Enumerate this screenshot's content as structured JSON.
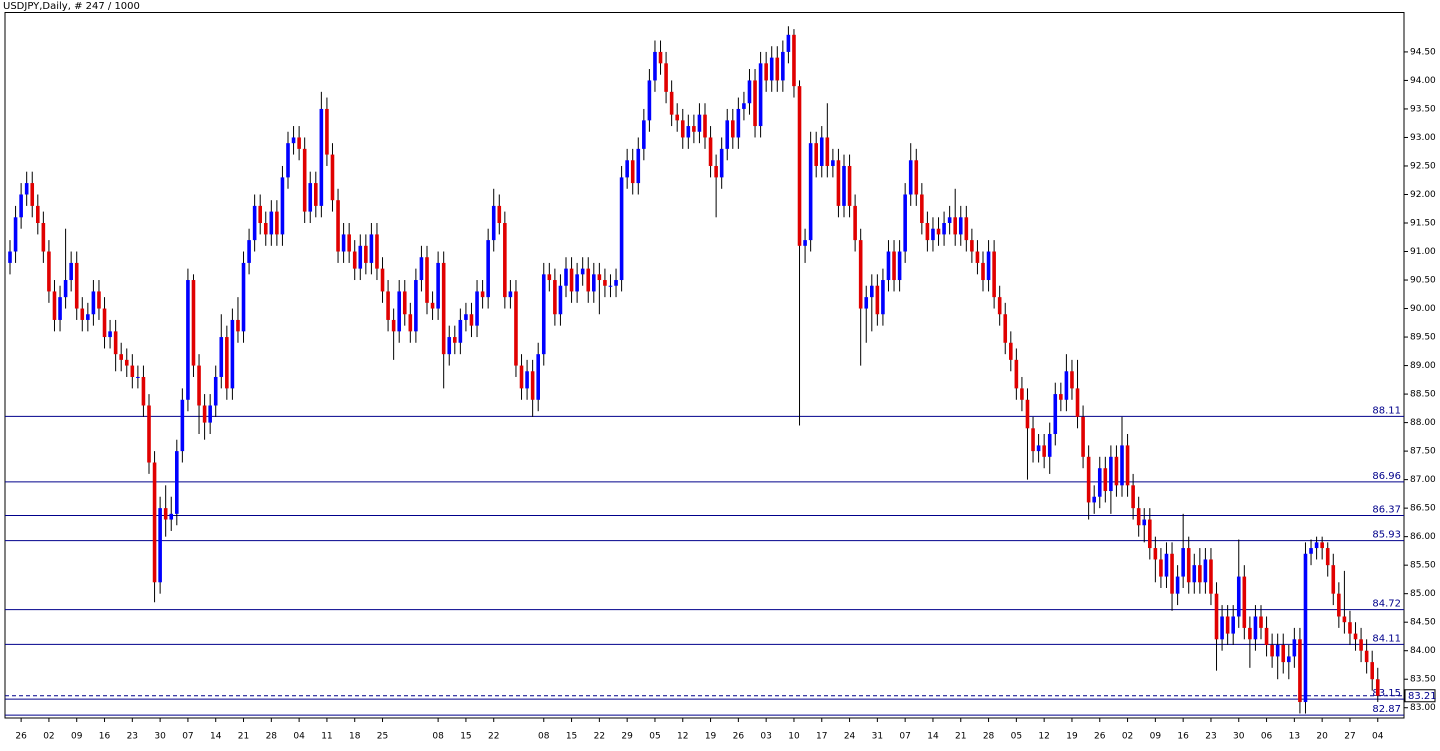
{
  "chart_data": {
    "type": "candlestick",
    "title": "USDJPY,Daily, # 247 / 1000",
    "up_color": "#0000ff",
    "down_color": "#e00000",
    "wick_color": "#000000",
    "level_color": "#00008b",
    "ylim": [
      82.82,
      95.2
    ],
    "yticks": [
      {
        "value": 83.0,
        "label": "83.00"
      },
      {
        "value": 83.5,
        "label": "83.50"
      },
      {
        "value": 84.0,
        "label": "84.00"
      },
      {
        "value": 84.5,
        "label": "84.50"
      },
      {
        "value": 85.0,
        "label": "85.00"
      },
      {
        "value": 85.5,
        "label": "85.50"
      },
      {
        "value": 86.0,
        "label": "86.00"
      },
      {
        "value": 86.5,
        "label": "86.50"
      },
      {
        "value": 87.0,
        "label": "87.00"
      },
      {
        "value": 87.5,
        "label": "87.50"
      },
      {
        "value": 88.0,
        "label": "88.00"
      },
      {
        "value": 88.5,
        "label": "88.50"
      },
      {
        "value": 89.0,
        "label": "89.00"
      },
      {
        "value": 89.5,
        "label": "89.50"
      },
      {
        "value": 90.0,
        "label": "90.00"
      },
      {
        "value": 90.5,
        "label": "90.50"
      },
      {
        "value": 91.0,
        "label": "91.00"
      },
      {
        "value": 91.5,
        "label": "91.50"
      },
      {
        "value": 92.0,
        "label": "92.00"
      },
      {
        "value": 92.5,
        "label": "92.50"
      },
      {
        "value": 93.0,
        "label": "93.00"
      },
      {
        "value": 93.5,
        "label": "93.50"
      },
      {
        "value": 94.0,
        "label": "94.00"
      },
      {
        "value": 94.5,
        "label": "94.50"
      }
    ],
    "levels": [
      88.11,
      86.96,
      86.37,
      85.93,
      84.72,
      84.11,
      83.15,
      82.87
    ],
    "bid": 83.21,
    "categories": [
      null,
      null,
      "26",
      null,
      null,
      null,
      null,
      "02",
      null,
      null,
      null,
      null,
      "09",
      null,
      null,
      null,
      null,
      "16",
      null,
      null,
      null,
      null,
      "23",
      null,
      null,
      null,
      null,
      "30",
      null,
      null,
      null,
      null,
      "07",
      null,
      null,
      null,
      null,
      "14",
      null,
      null,
      null,
      null,
      "21",
      null,
      null,
      null,
      null,
      "28",
      null,
      null,
      null,
      null,
      "04",
      null,
      null,
      null,
      null,
      "11",
      null,
      null,
      null,
      null,
      "18",
      null,
      null,
      null,
      null,
      "25",
      null,
      null,
      null,
      null,
      null,
      null,
      null,
      null,
      null,
      "08",
      null,
      null,
      null,
      null,
      "15",
      null,
      null,
      null,
      null,
      "22",
      null,
      null,
      null,
      null,
      null,
      null,
      null,
      null,
      "08",
      null,
      null,
      null,
      null,
      "15",
      null,
      null,
      null,
      null,
      "22",
      null,
      null,
      null,
      null,
      "29",
      null,
      null,
      null,
      null,
      "05",
      null,
      null,
      null,
      null,
      "12",
      null,
      null,
      null,
      null,
      "19",
      null,
      null,
      null,
      null,
      "26",
      null,
      null,
      null,
      null,
      "03",
      null,
      null,
      null,
      null,
      "10",
      null,
      null,
      null,
      null,
      "17",
      null,
      null,
      null,
      null,
      "24",
      null,
      null,
      null,
      null,
      "31",
      null,
      null,
      null,
      null,
      "07",
      null,
      null,
      null,
      null,
      "14",
      null,
      null,
      null,
      null,
      "21",
      null,
      null,
      null,
      null,
      "28",
      null,
      null,
      null,
      null,
      "05",
      null,
      null,
      null,
      null,
      "12",
      null,
      null,
      null,
      null,
      "19",
      null,
      null,
      null,
      null,
      "26",
      null,
      null,
      null,
      null,
      "02",
      null,
      null,
      null,
      null,
      "09",
      null,
      null,
      null,
      null,
      "16",
      null,
      null,
      null,
      null,
      "23",
      null,
      null,
      null,
      null,
      "30",
      null,
      null,
      null,
      null,
      "06",
      null,
      null,
      null,
      null,
      "13",
      null,
      null,
      null,
      null,
      "20",
      null,
      null,
      null,
      null,
      "27",
      null,
      null,
      null,
      null,
      "04"
    ],
    "open": [
      90.8,
      91.0,
      91.6,
      92.0,
      92.2,
      91.8,
      91.5,
      91.0,
      90.3,
      89.8,
      90.2,
      90.5,
      90.8,
      90.0,
      89.8,
      89.9,
      90.3,
      90.0,
      89.5,
      89.6,
      89.2,
      89.1,
      89.0,
      88.8,
      88.8,
      88.3,
      87.3,
      85.2,
      86.5,
      86.3,
      86.4,
      87.5,
      88.4,
      90.5,
      89.0,
      88.3,
      88.0,
      88.3,
      88.8,
      89.5,
      88.6,
      89.8,
      89.6,
      90.8,
      91.2,
      91.8,
      91.5,
      91.3,
      91.7,
      91.3,
      92.3,
      92.9,
      93.0,
      92.8,
      91.7,
      92.2,
      91.8,
      93.5,
      92.7,
      91.9,
      91.0,
      91.3,
      91.0,
      90.7,
      91.1,
      90.8,
      91.3,
      90.7,
      90.3,
      89.8,
      89.6,
      90.3,
      89.9,
      89.6,
      90.5,
      90.9,
      90.1,
      90.0,
      90.8,
      89.2,
      89.5,
      89.4,
      89.8,
      89.9,
      89.7,
      90.3,
      90.2,
      91.2,
      91.8,
      91.5,
      90.2,
      90.3,
      89.0,
      88.6,
      88.9,
      88.4,
      89.2,
      90.6,
      90.5,
      89.9,
      90.4,
      90.7,
      90.3,
      90.6,
      90.7,
      90.3,
      90.6,
      90.5,
      90.4,
      90.4,
      90.5,
      92.3,
      92.6,
      92.2,
      92.8,
      93.3,
      94.0,
      94.5,
      94.3,
      93.8,
      93.4,
      93.3,
      93.0,
      93.2,
      93.1,
      93.4,
      93.0,
      92.5,
      92.3,
      92.8,
      93.3,
      93.0,
      93.5,
      93.6,
      94.0,
      93.2,
      94.3,
      94.0,
      94.4,
      94.0,
      94.5,
      94.8,
      93.9,
      91.1,
      91.2,
      92.9,
      92.5,
      93.0,
      92.5,
      92.6,
      91.8,
      92.5,
      91.8,
      91.2,
      90.0,
      90.2,
      90.4,
      89.9,
      90.5,
      91.0,
      90.5,
      91.0,
      92.0,
      92.6,
      92.0,
      91.5,
      91.2,
      91.4,
      91.3,
      91.5,
      91.6,
      91.3,
      91.6,
      91.2,
      91.0,
      90.8,
      90.5,
      91.0,
      90.2,
      89.9,
      89.4,
      89.1,
      88.6,
      88.4,
      87.9,
      87.5,
      87.6,
      87.4,
      87.8,
      88.5,
      88.4,
      88.9,
      88.6,
      88.1,
      87.4,
      86.6,
      86.7,
      87.2,
      86.8,
      87.4,
      86.9,
      87.6,
      86.9,
      86.5,
      86.2,
      86.3,
      85.8,
      85.6,
      85.3,
      85.7,
      85.0,
      85.3,
      85.8,
      85.2,
      85.5,
      85.2,
      85.6,
      85.0,
      84.2,
      84.6,
      84.3,
      84.6,
      85.3,
      84.4,
      84.2,
      84.6,
      84.4,
      84.1,
      83.9,
      84.1,
      83.8,
      83.9,
      84.2,
      83.1,
      85.7,
      85.8,
      85.9,
      85.8,
      85.5,
      85.0,
      84.6,
      84.5,
      84.3,
      84.2,
      84.0,
      83.8,
      83.5
    ],
    "high": [
      91.2,
      91.8,
      92.2,
      92.4,
      92.4,
      92.0,
      91.7,
      91.2,
      90.5,
      90.4,
      91.4,
      91.0,
      91.0,
      90.2,
      90.1,
      90.5,
      90.5,
      90.2,
      89.8,
      89.8,
      89.4,
      89.3,
      89.2,
      89.0,
      89.0,
      88.5,
      87.5,
      86.7,
      86.9,
      86.7,
      87.7,
      88.6,
      90.7,
      90.6,
      89.2,
      88.5,
      88.5,
      89.0,
      89.9,
      89.7,
      90.0,
      90.2,
      91.0,
      91.4,
      92.0,
      92.0,
      91.7,
      91.9,
      91.9,
      92.5,
      93.1,
      93.2,
      93.2,
      93.0,
      92.4,
      92.4,
      93.8,
      93.7,
      92.9,
      92.1,
      91.5,
      91.5,
      91.2,
      91.3,
      91.3,
      91.5,
      91.5,
      90.9,
      90.5,
      90.0,
      90.5,
      90.5,
      90.1,
      90.7,
      91.1,
      91.1,
      90.3,
      91.0,
      91.0,
      89.7,
      89.7,
      90.0,
      90.1,
      90.1,
      90.5,
      90.5,
      91.4,
      92.1,
      92.0,
      91.7,
      90.5,
      90.5,
      89.2,
      89.1,
      89.1,
      89.4,
      90.8,
      90.8,
      90.7,
      90.6,
      90.9,
      90.9,
      90.8,
      90.9,
      90.9,
      90.8,
      90.8,
      90.7,
      90.6,
      90.7,
      92.5,
      92.8,
      92.8,
      93.0,
      93.5,
      94.2,
      94.7,
      94.7,
      94.5,
      94.0,
      93.6,
      93.5,
      93.4,
      93.4,
      93.6,
      93.6,
      93.2,
      92.7,
      93.0,
      93.5,
      93.5,
      93.7,
      93.8,
      94.2,
      94.2,
      94.5,
      94.5,
      94.6,
      94.6,
      94.7,
      94.95,
      94.9,
      94.0,
      91.4,
      93.1,
      93.1,
      93.2,
      93.6,
      92.8,
      92.8,
      92.7,
      92.7,
      92.0,
      91.4,
      90.4,
      90.6,
      90.6,
      90.7,
      91.2,
      91.2,
      91.2,
      92.2,
      92.9,
      92.8,
      92.2,
      91.7,
      91.6,
      91.6,
      91.7,
      91.8,
      92.1,
      91.8,
      91.8,
      91.4,
      91.2,
      91.0,
      91.2,
      91.2,
      90.4,
      90.1,
      89.6,
      89.3,
      88.8,
      88.6,
      88.1,
      87.8,
      87.8,
      88.0,
      88.7,
      88.7,
      89.2,
      89.1,
      89.1,
      88.3,
      87.6,
      86.9,
      87.4,
      87.4,
      87.6,
      87.6,
      88.1,
      87.8,
      87.1,
      86.7,
      86.5,
      86.5,
      86.0,
      85.8,
      85.9,
      85.9,
      85.5,
      86.4,
      86.0,
      85.7,
      85.8,
      85.8,
      85.8,
      85.2,
      84.8,
      84.8,
      84.8,
      85.95,
      85.5,
      84.6,
      84.8,
      84.8,
      84.6,
      84.3,
      84.3,
      84.3,
      84.1,
      84.4,
      84.4,
      85.9,
      85.95,
      86.0,
      86.0,
      85.9,
      85.7,
      85.2,
      85.4,
      84.7,
      84.5,
      84.4,
      84.2,
      84.0,
      83.7
    ],
    "low": [
      90.6,
      90.8,
      91.4,
      91.8,
      91.6,
      91.3,
      90.8,
      90.1,
      89.6,
      89.6,
      90.0,
      90.3,
      89.8,
      89.6,
      89.6,
      89.7,
      89.8,
      89.3,
      89.3,
      88.9,
      88.9,
      88.8,
      88.6,
      88.6,
      88.1,
      87.1,
      84.85,
      85.0,
      86.0,
      86.1,
      86.2,
      87.3,
      88.2,
      88.8,
      87.8,
      87.7,
      87.8,
      88.1,
      88.6,
      88.4,
      88.4,
      89.4,
      89.4,
      90.6,
      91.0,
      91.3,
      91.1,
      91.1,
      91.1,
      91.1,
      92.1,
      92.7,
      92.6,
      91.5,
      91.5,
      91.6,
      91.6,
      92.5,
      91.7,
      90.8,
      90.8,
      90.8,
      90.5,
      90.5,
      90.6,
      90.6,
      90.5,
      90.1,
      89.6,
      89.1,
      89.4,
      89.7,
      89.4,
      89.4,
      90.3,
      89.9,
      89.8,
      89.8,
      88.6,
      89.0,
      89.2,
      89.2,
      89.6,
      89.5,
      89.5,
      90.0,
      90.0,
      91.0,
      91.3,
      90.0,
      90.0,
      88.8,
      88.4,
      88.4,
      88.1,
      88.2,
      89.0,
      90.3,
      89.7,
      89.7,
      90.2,
      90.1,
      90.1,
      90.4,
      90.1,
      90.1,
      89.9,
      90.2,
      90.2,
      90.2,
      90.3,
      92.1,
      92.0,
      92.0,
      92.6,
      93.1,
      93.8,
      94.1,
      93.6,
      93.2,
      93.1,
      92.8,
      92.8,
      92.9,
      92.9,
      92.8,
      92.3,
      91.6,
      92.1,
      92.6,
      92.8,
      92.8,
      93.3,
      93.4,
      93.0,
      93.0,
      93.8,
      93.8,
      93.8,
      93.8,
      94.3,
      93.7,
      87.95,
      90.8,
      91.0,
      92.3,
      92.3,
      92.3,
      92.3,
      91.6,
      91.6,
      91.6,
      91.0,
      89.0,
      89.4,
      89.6,
      89.7,
      89.7,
      90.3,
      90.3,
      90.3,
      90.8,
      91.8,
      91.8,
      91.3,
      91.0,
      91.0,
      91.1,
      91.1,
      91.3,
      91.1,
      91.1,
      91.0,
      90.8,
      90.6,
      90.3,
      90.3,
      90.0,
      89.7,
      89.2,
      88.9,
      88.4,
      88.2,
      87.0,
      87.3,
      87.3,
      87.2,
      87.1,
      87.6,
      88.2,
      88.2,
      88.4,
      87.9,
      87.2,
      86.3,
      86.4,
      86.5,
      86.6,
      86.4,
      86.7,
      86.7,
      86.7,
      86.3,
      86.0,
      85.9,
      85.6,
      85.2,
      85.1,
      85.1,
      84.7,
      84.8,
      85.1,
      85.0,
      85.0,
      85.0,
      85.0,
      84.8,
      83.65,
      84.0,
      84.1,
      84.1,
      84.4,
      84.2,
      83.7,
      84.0,
      84.2,
      83.9,
      83.7,
      83.5,
      83.6,
      83.5,
      83.7,
      82.9,
      82.9,
      85.5,
      85.6,
      85.6,
      85.3,
      84.8,
      84.4,
      84.3,
      84.1,
      84.0,
      83.8,
      83.6,
      83.3,
      83.1
    ],
    "close": [
      91.0,
      91.6,
      92.0,
      92.2,
      91.8,
      91.5,
      91.0,
      90.3,
      89.8,
      90.2,
      90.5,
      90.8,
      90.0,
      89.8,
      89.9,
      90.3,
      90.0,
      89.5,
      89.6,
      89.2,
      89.1,
      89.0,
      88.8,
      88.8,
      88.3,
      87.3,
      85.2,
      86.5,
      86.3,
      86.4,
      87.5,
      88.4,
      90.5,
      89.0,
      88.3,
      88.0,
      88.3,
      88.8,
      89.5,
      88.6,
      89.8,
      89.6,
      90.8,
      91.2,
      91.8,
      91.5,
      91.3,
      91.7,
      91.3,
      92.3,
      92.9,
      93.0,
      92.8,
      91.7,
      92.2,
      91.8,
      93.5,
      92.7,
      91.9,
      91.0,
      91.3,
      91.0,
      90.7,
      91.1,
      90.8,
      91.3,
      90.7,
      90.3,
      89.8,
      89.6,
      90.3,
      89.9,
      89.6,
      90.5,
      90.9,
      90.1,
      90.0,
      90.8,
      89.2,
      89.5,
      89.4,
      89.8,
      89.9,
      89.7,
      90.3,
      90.2,
      91.2,
      91.8,
      91.5,
      90.2,
      90.3,
      89.0,
      88.6,
      88.9,
      88.4,
      89.2,
      90.6,
      90.5,
      89.9,
      90.4,
      90.7,
      90.3,
      90.6,
      90.7,
      90.3,
      90.6,
      90.5,
      90.4,
      90.4,
      90.5,
      92.3,
      92.6,
      92.2,
      92.8,
      93.3,
      94.0,
      94.5,
      94.3,
      93.8,
      93.4,
      93.3,
      93.0,
      93.2,
      93.1,
      93.4,
      93.0,
      92.5,
      92.3,
      92.8,
      93.3,
      93.0,
      93.5,
      93.6,
      94.0,
      93.2,
      94.3,
      94.0,
      94.4,
      94.0,
      94.5,
      94.8,
      93.9,
      91.1,
      91.2,
      92.9,
      92.5,
      93.0,
      92.5,
      92.6,
      91.8,
      92.5,
      91.8,
      91.2,
      90.0,
      90.2,
      90.4,
      89.9,
      90.5,
      91.0,
      90.5,
      91.0,
      92.0,
      92.6,
      92.0,
      91.5,
      91.2,
      91.4,
      91.3,
      91.5,
      91.6,
      91.3,
      91.6,
      91.2,
      91.0,
      90.8,
      90.5,
      91.0,
      90.2,
      89.9,
      89.4,
      89.1,
      88.6,
      88.4,
      87.9,
      87.5,
      87.6,
      87.4,
      87.8,
      88.5,
      88.4,
      88.9,
      88.6,
      88.1,
      87.4,
      86.6,
      86.7,
      87.2,
      86.8,
      87.4,
      86.9,
      87.6,
      86.9,
      86.5,
      86.2,
      86.3,
      85.8,
      85.6,
      85.3,
      85.7,
      85.0,
      85.3,
      85.8,
      85.2,
      85.5,
      85.2,
      85.6,
      85.0,
      84.2,
      84.6,
      84.3,
      84.6,
      85.3,
      84.4,
      84.2,
      84.6,
      84.4,
      84.1,
      83.9,
      84.1,
      83.8,
      83.9,
      84.2,
      83.1,
      85.7,
      85.8,
      85.9,
      85.8,
      85.5,
      85.0,
      84.6,
      84.5,
      84.3,
      84.2,
      84.0,
      83.8,
      83.5,
      83.21
    ]
  }
}
